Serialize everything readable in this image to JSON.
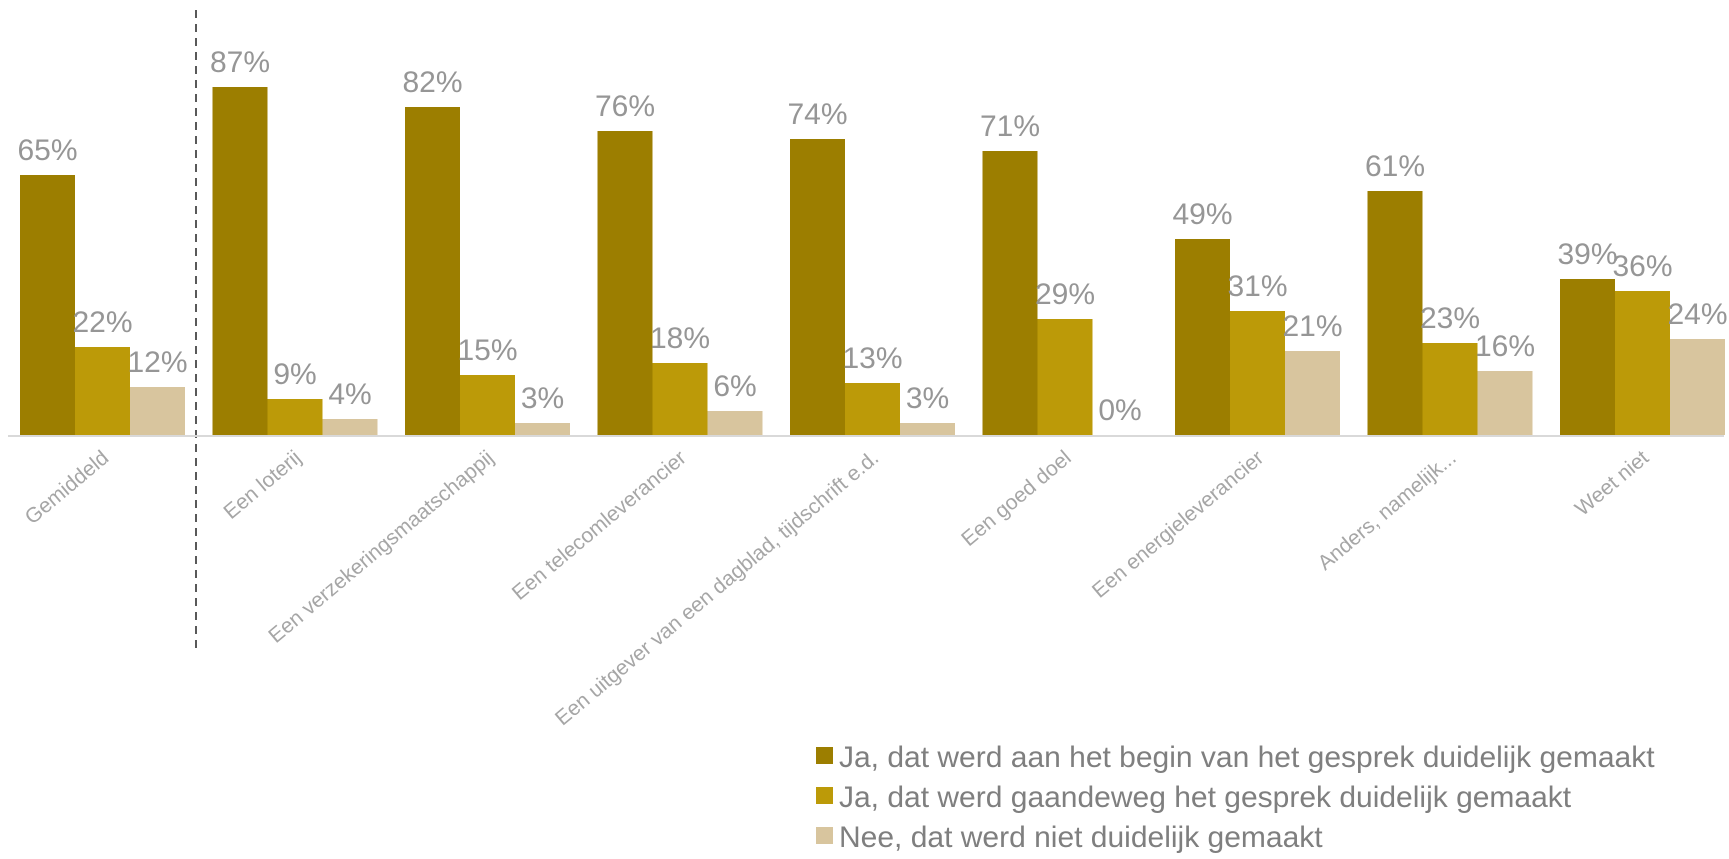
{
  "chart_data": {
    "type": "bar",
    "categories": [
      "Gemiddeld",
      "Een loterij",
      "Een verzekeringsmaatschappij",
      "Een telecomleverancier",
      "Een uitgever van een dagblad, tijdschrift e.d.",
      "Een goed doel",
      "Een energieleverancier",
      "Anders, namelijk...",
      "Weet niet"
    ],
    "series": [
      {
        "name": "Ja, dat werd aan het begin van het gesprek duidelijk gemaakt",
        "color": "#9c7e00",
        "values": [
          65,
          87,
          82,
          76,
          74,
          71,
          49,
          61,
          39
        ],
        "labels": [
          "65%",
          "87%",
          "82%",
          "76%",
          "74%",
          "71%",
          "49%",
          "61%",
          "39%"
        ]
      },
      {
        "name": "Ja, dat werd gaandeweg het gesprek duidelijk gemaakt",
        "color": "#bc9a08",
        "values": [
          22,
          9,
          15,
          18,
          13,
          29,
          31,
          23,
          36
        ],
        "labels": [
          "22%",
          "9%",
          "15%",
          "18%",
          "13%",
          "29%",
          "31%",
          "23%",
          "36%"
        ]
      },
      {
        "name": "Nee, dat werd niet duidelijk gemaakt",
        "color": "#d8c59e",
        "values": [
          12,
          4,
          3,
          6,
          3,
          0,
          21,
          16,
          24
        ],
        "labels": [
          "12%",
          "4%",
          "3%",
          "6%",
          "3%",
          "0%",
          "21%",
          "16%",
          "24%"
        ]
      }
    ],
    "title": "",
    "xlabel": "",
    "ylabel": "",
    "ylim": [
      0,
      100
    ],
    "grid": false,
    "legend": "bottom-right",
    "separator_after_category": "Gemiddeld"
  }
}
